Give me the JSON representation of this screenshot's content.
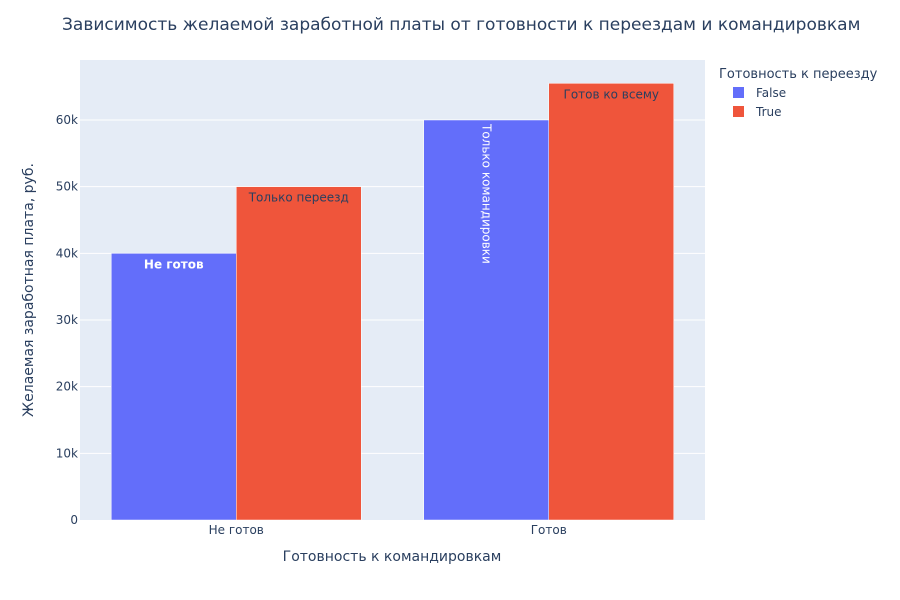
{
  "chart_data": {
    "type": "bar",
    "title": "Зависимость желаемой заработной платы от готовности к переездам и командировкам",
    "xlabel": "Готовность к командировкам",
    "ylabel": "Желаемая заработная плата, руб.",
    "categories": [
      "Не готов",
      "Готов"
    ],
    "series": [
      {
        "name": "False",
        "values": [
          40000,
          60000
        ],
        "color": "#636efa",
        "bar_labels": [
          "Не готов",
          "Только командировки"
        ]
      },
      {
        "name": "True",
        "values": [
          50000,
          65500
        ],
        "color": "#ef553b",
        "bar_labels": [
          "Только переезд",
          "Готов ко всему"
        ]
      }
    ],
    "ylim": [
      0,
      69000
    ],
    "yticks": [
      0,
      10000,
      20000,
      30000,
      40000,
      50000,
      60000
    ],
    "ytick_labels": [
      "0",
      "10k",
      "20k",
      "30k",
      "40k",
      "50k",
      "60k"
    ],
    "grid": true,
    "legend": {
      "title": "Готовность к переезду",
      "placement": "top-right, outside plot"
    }
  }
}
